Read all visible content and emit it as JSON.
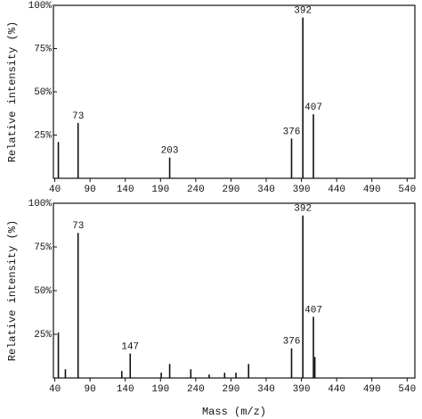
{
  "chart_data": [
    {
      "type": "bar",
      "y_label": "Relative intensity (%)",
      "color": "#111111",
      "x": [
        45,
        73,
        203,
        376,
        392,
        407
      ],
      "values": [
        21,
        32,
        12,
        23,
        93,
        37
      ],
      "peak_labels": [
        null,
        "73",
        "203",
        "376",
        "392",
        "407"
      ],
      "xlim": [
        38,
        551
      ],
      "ylim": [
        0,
        100
      ],
      "xticks": [
        40,
        90,
        140,
        190,
        240,
        290,
        340,
        390,
        440,
        490,
        540
      ],
      "yticks": [
        {
          "value": 25,
          "label": "25%"
        },
        {
          "value": 50,
          "label": "50%"
        },
        {
          "value": 75,
          "label": "75%"
        },
        {
          "value": 100,
          "label": "100%"
        }
      ]
    },
    {
      "type": "bar",
      "y_label": "Relative intensity (%)",
      "x_label": "Mass (m/z)",
      "color": "#111111",
      "x": [
        45,
        55,
        73,
        135,
        147,
        191,
        203,
        233,
        259,
        281,
        297,
        315,
        376,
        392,
        407,
        409
      ],
      "values": [
        26,
        5,
        83,
        4,
        14,
        3,
        8,
        5,
        2,
        3,
        3,
        8,
        17,
        93,
        35,
        12
      ],
      "peak_labels": [
        null,
        null,
        "73",
        null,
        "147",
        null,
        null,
        null,
        null,
        null,
        null,
        null,
        "376",
        "392",
        "407",
        null
      ],
      "xlim": [
        38,
        551
      ],
      "ylim": [
        0,
        100
      ],
      "xticks": [
        40,
        90,
        140,
        190,
        240,
        290,
        340,
        390,
        440,
        490,
        540
      ],
      "yticks": [
        {
          "value": 25,
          "label": "25%"
        },
        {
          "value": 50,
          "label": "50%"
        },
        {
          "value": 75,
          "label": "75%"
        },
        {
          "value": 100,
          "label": "100%"
        }
      ]
    }
  ]
}
